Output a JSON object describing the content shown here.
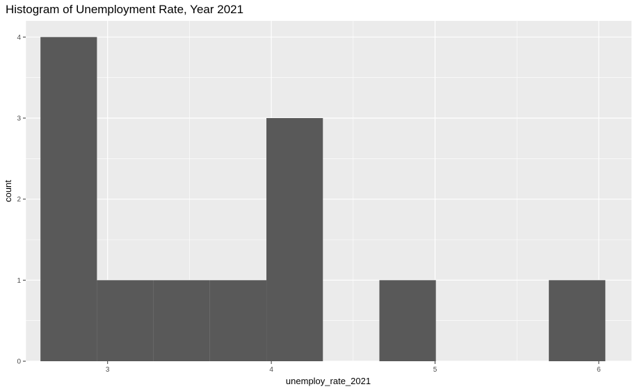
{
  "chart_data": {
    "type": "bar",
    "title": "Histogram of Unemployment Rate, Year 2021",
    "xlabel": "unemploy_rate_2021",
    "ylabel": "count",
    "xlim": [
      2.5,
      6.2
    ],
    "ylim": [
      0,
      4.2
    ],
    "x_ticks": [
      3,
      4,
      5,
      6
    ],
    "y_ticks": [
      0,
      1,
      2,
      3,
      4
    ],
    "grid": true,
    "bin_width": 0.345,
    "bins": [
      {
        "x0": 2.59,
        "x1": 2.935,
        "count": 4
      },
      {
        "x0": 2.935,
        "x1": 3.28,
        "count": 1
      },
      {
        "x0": 3.28,
        "x1": 3.625,
        "count": 1
      },
      {
        "x0": 3.625,
        "x1": 3.97,
        "count": 1
      },
      {
        "x0": 3.97,
        "x1": 4.315,
        "count": 3
      },
      {
        "x0": 4.315,
        "x1": 4.66,
        "count": 0
      },
      {
        "x0": 4.66,
        "x1": 5.005,
        "count": 1
      },
      {
        "x0": 5.005,
        "x1": 5.35,
        "count": 0
      },
      {
        "x0": 5.35,
        "x1": 5.695,
        "count": 0
      },
      {
        "x0": 5.695,
        "x1": 6.04,
        "count": 1
      }
    ],
    "colors": {
      "panel_background": "#ebebeb",
      "grid": "#ffffff",
      "bar_fill": "#595959"
    }
  }
}
